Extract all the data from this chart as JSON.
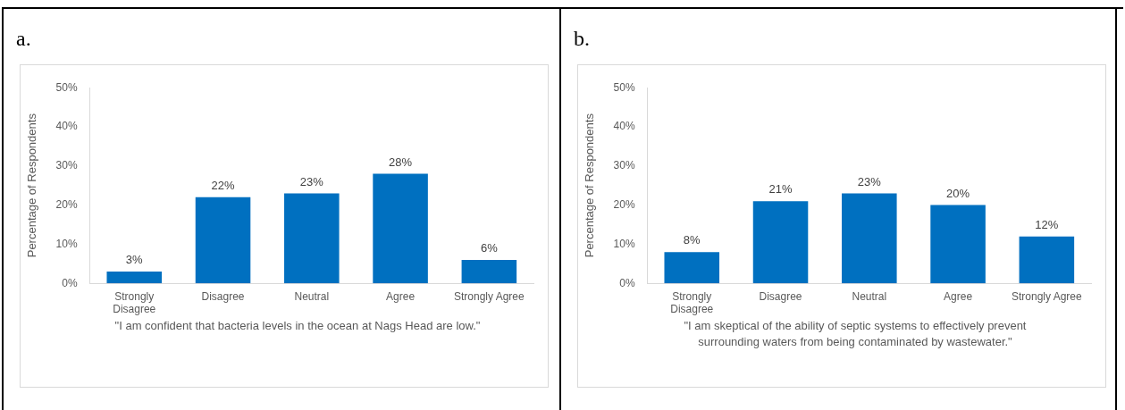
{
  "chart_data": [
    {
      "type": "bar",
      "title": "a.",
      "categories": [
        "Strongly Disagree",
        "Disagree",
        "Neutral",
        "Agree",
        "Strongly Agree"
      ],
      "values": [
        3,
        22,
        23,
        28,
        6
      ],
      "value_labels": [
        "3%",
        "22%",
        "23%",
        "28%",
        "6%"
      ],
      "color": "#0070c0",
      "ylim": [
        0,
        50
      ],
      "yticks": [
        {
          "value": 0,
          "label": "0%"
        },
        {
          "value": 10,
          "label": "10%"
        },
        {
          "value": 20,
          "label": "20%"
        },
        {
          "value": 30,
          "label": "30%"
        },
        {
          "value": 40,
          "label": "40%"
        },
        {
          "value": 50,
          "label": "50%"
        }
      ],
      "ylabel": "Percentage of Respondents",
      "xlabel": "\"I am confident that bacteria levels in the ocean at Nags Head are low.\"",
      "grid": false,
      "legend": false
    },
    {
      "type": "bar",
      "title": "b.",
      "categories": [
        "Strongly Disagree",
        "Disagree",
        "Neutral",
        "Agree",
        "Strongly Agree"
      ],
      "values": [
        8,
        21,
        23,
        20,
        12
      ],
      "value_labels": [
        "8%",
        "21%",
        "23%",
        "20%",
        "12%"
      ],
      "color": "#0070c0",
      "ylim": [
        0,
        50
      ],
      "yticks": [
        {
          "value": 0,
          "label": "0%"
        },
        {
          "value": 10,
          "label": "10%"
        },
        {
          "value": 20,
          "label": "20%"
        },
        {
          "value": 30,
          "label": "30%"
        },
        {
          "value": 40,
          "label": "40%"
        },
        {
          "value": 50,
          "label": "50%"
        }
      ],
      "ylabel": "Percentage of Respondents",
      "xlabel": "\"I am skeptical of the ability of septic systems to effectively prevent surrounding waters from being contaminated by wastewater.\"",
      "grid": false,
      "legend": false
    }
  ]
}
